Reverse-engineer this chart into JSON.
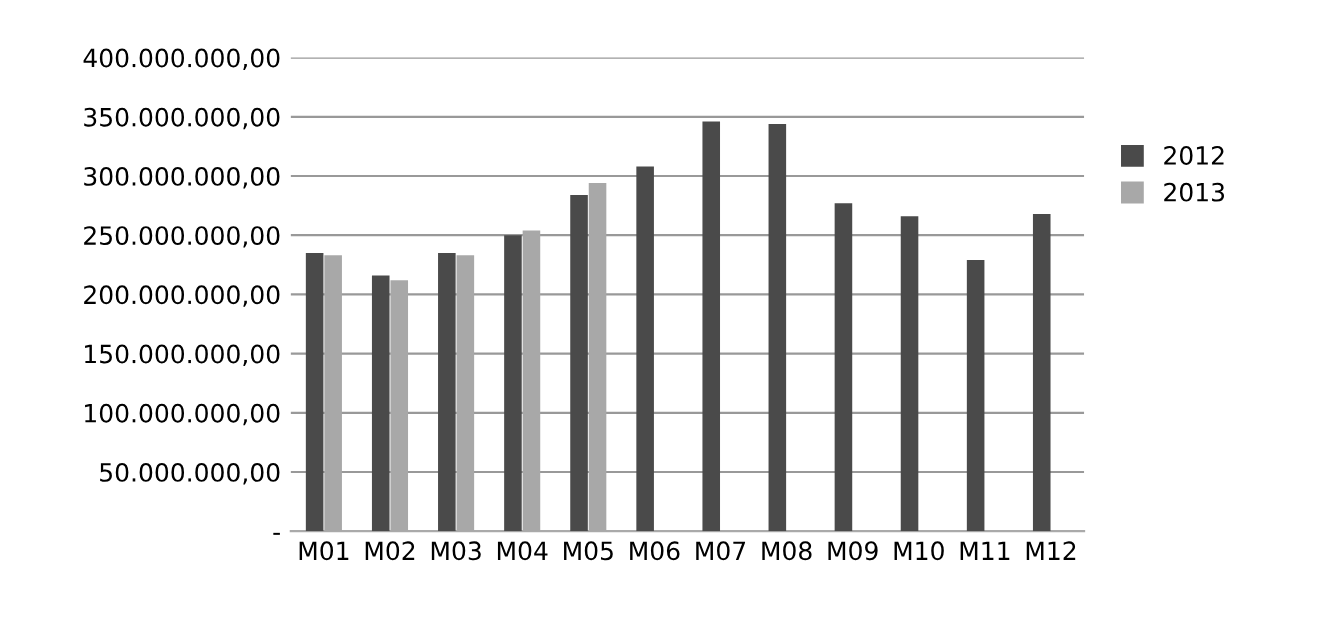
{
  "chart_data": {
    "type": "bar",
    "categories": [
      "M01",
      "M02",
      "M03",
      "M04",
      "M05",
      "M06",
      "M07",
      "M08",
      "M09",
      "M10",
      "M11",
      "M12"
    ],
    "series": [
      {
        "name": "2012",
        "color": "#4a4a4a",
        "values": [
          235000000,
          216000000,
          235000000,
          250000000,
          284000000,
          308000000,
          346000000,
          344000000,
          277000000,
          266000000,
          229000000,
          268000000
        ]
      },
      {
        "name": "2013",
        "color": "#a8a8a8",
        "values": [
          233000000,
          212000000,
          233000000,
          254000000,
          294000000,
          null,
          null,
          null,
          null,
          null,
          null,
          null
        ]
      }
    ],
    "ylim": [
      0,
      400000000
    ],
    "yticks": [
      {
        "value": 0,
        "label": "-"
      },
      {
        "value": 50000000,
        "label": "50.000.000,00"
      },
      {
        "value": 100000000,
        "label": "100.000.000,00"
      },
      {
        "value": 150000000,
        "label": "150.000.000,00"
      },
      {
        "value": 200000000,
        "label": "200.000.000,00"
      },
      {
        "value": 250000000,
        "label": "250.000.000,00"
      },
      {
        "value": 300000000,
        "label": "300.000.000,00"
      },
      {
        "value": 350000000,
        "label": "350.000.000,00"
      },
      {
        "value": 400000000,
        "label": "400.000.000,00"
      }
    ],
    "grid": "y",
    "legend": "right"
  }
}
